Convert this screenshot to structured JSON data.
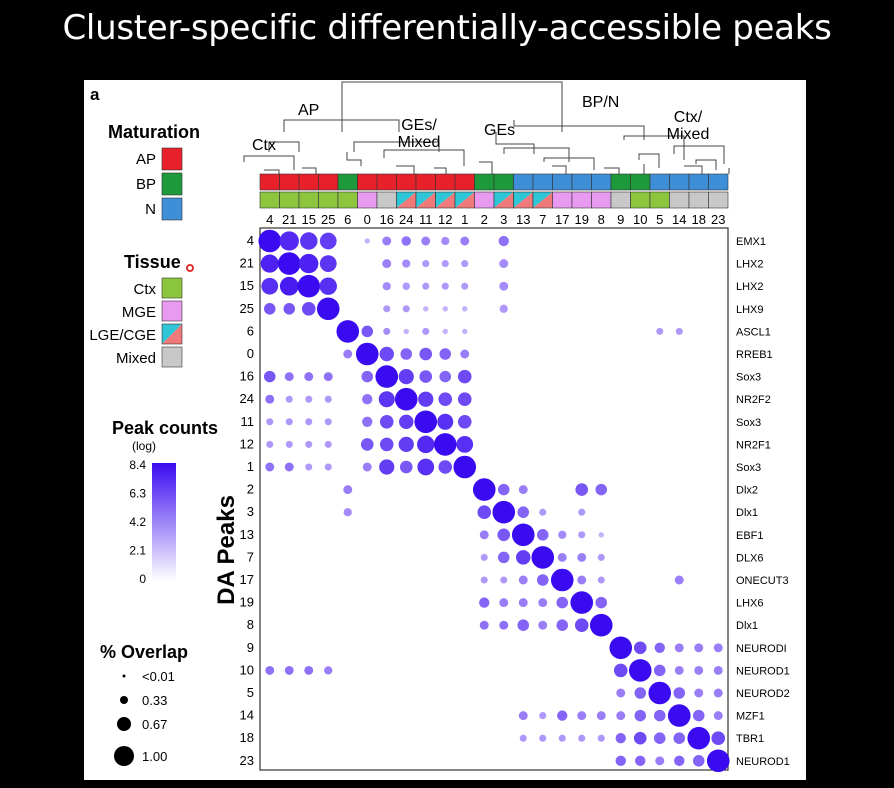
{
  "slide": {
    "title": "Cluster-specific differentially-accessible peaks"
  },
  "panel_label": "a",
  "dendrogram_labels": {
    "ap": "AP",
    "bpn": "BP/N",
    "ctx": "Ctx",
    "ges_mixed": "GEs/\nMixed",
    "ges": "GEs",
    "ctx_mixed": "Ctx/\nMixed"
  },
  "legend": {
    "maturation_title": "Maturation",
    "maturation": [
      {
        "label": "AP",
        "color": "#e8202a"
      },
      {
        "label": "BP",
        "color": "#1e9a3c"
      },
      {
        "label": "N",
        "color": "#3f8fd8"
      }
    ],
    "tissue_title": "Tissue",
    "tissue": [
      {
        "label": "Ctx",
        "color": "#8cc63f"
      },
      {
        "label": "MGE",
        "color": "#e89af0"
      },
      {
        "label": "LGE/CGE",
        "color": "split"
      },
      {
        "label": "Mixed",
        "color": "#c8c8c8"
      }
    ],
    "peak_title": "Peak counts",
    "peak_sub": "(log)",
    "peak_ticks": [
      "8.4",
      "6.3",
      "4.2",
      "2.1",
      "0"
    ],
    "overlap_title": "% Overlap",
    "overlap_ticks": [
      "<0.01",
      "0.33",
      "0.67",
      "1.00"
    ]
  },
  "colors": {
    "dot_high": "#3a0bf0",
    "dot_low": "#efe6ff",
    "lge": "#2ec6d6",
    "lge2": "#f07a7a"
  },
  "chart_data": {
    "type": "heatmap",
    "encoding": "dot matrix: dot size = % overlap, dot color = peak counts (log)",
    "ylabel": "DA Peaks",
    "columns": [
      "4",
      "21",
      "15",
      "25",
      "6",
      "0",
      "16",
      "24",
      "11",
      "12",
      "1",
      "2",
      "3",
      "13",
      "7",
      "17",
      "19",
      "8",
      "9",
      "10",
      "5",
      "14",
      "18",
      "23"
    ],
    "column_maturation": [
      "AP",
      "AP",
      "AP",
      "AP",
      "BP",
      "AP",
      "AP",
      "AP",
      "AP",
      "AP",
      "AP",
      "BP",
      "BP",
      "N",
      "N",
      "N",
      "N",
      "N",
      "BP",
      "BP",
      "N",
      "N",
      "N",
      "N"
    ],
    "column_tissue": [
      "Ctx",
      "Ctx",
      "Ctx",
      "Ctx",
      "Ctx",
      "MGE",
      "Mixed",
      "LGE/CGE",
      "LGE/CGE",
      "LGE/CGE",
      "LGE/CGE",
      "MGE",
      "LGE/CGE",
      "LGE/CGE",
      "LGE/CGE",
      "MGE",
      "MGE",
      "MGE",
      "Mixed",
      "Ctx",
      "Ctx",
      "Mixed",
      "Mixed",
      "Mixed"
    ],
    "rows": [
      "4",
      "21",
      "15",
      "25",
      "6",
      "0",
      "16",
      "24",
      "11",
      "12",
      "1",
      "2",
      "3",
      "13",
      "7",
      "17",
      "19",
      "8",
      "9",
      "10",
      "5",
      "14",
      "18",
      "23"
    ],
    "row_motifs": [
      "EMX1",
      "LHX2",
      "LHX2",
      "LHX9",
      "ASCL1",
      "RREB1",
      "Sox3",
      "NR2F2",
      "Sox3",
      "NR2F1",
      "Sox3",
      "Dlx2",
      "Dlx1",
      "EBF1",
      "DLX6",
      "ONECUT3",
      "LHX6",
      "Dlx1",
      "NEURODI",
      "NEUROD1",
      "NEUROD2",
      "MZF1",
      "TBR1",
      "NEUROD1"
    ],
    "peak_range": [
      0,
      8.4
    ],
    "overlap_range": [
      0,
      1.0
    ],
    "overlap": [
      [
        1.0,
        0.7,
        0.55,
        0.5,
        0,
        0.02,
        0.1,
        0.12,
        0.1,
        0.08,
        0.1,
        0,
        0.15,
        0,
        0,
        0,
        0,
        0,
        0,
        0,
        0,
        0,
        0,
        0
      ],
      [
        0.6,
        1.0,
        0.7,
        0.5,
        0,
        0,
        0.1,
        0.08,
        0.05,
        0.05,
        0.05,
        0,
        0.1,
        0,
        0,
        0,
        0,
        0,
        0,
        0,
        0,
        0,
        0,
        0
      ],
      [
        0.5,
        0.65,
        1.0,
        0.55,
        0,
        0,
        0.08,
        0.06,
        0.05,
        0.05,
        0.05,
        0,
        0.1,
        0,
        0,
        0,
        0,
        0,
        0,
        0,
        0,
        0,
        0,
        0
      ],
      [
        0.2,
        0.2,
        0.3,
        1.0,
        0,
        0,
        0.05,
        0.05,
        0.02,
        0.02,
        0.02,
        0,
        0.08,
        0,
        0,
        0,
        0,
        0,
        0,
        0,
        0,
        0,
        0,
        0
      ],
      [
        0,
        0,
        0,
        0,
        1.0,
        0.2,
        0.05,
        0.02,
        0.05,
        0.02,
        0.02,
        0,
        0,
        0,
        0,
        0,
        0,
        0,
        0,
        0,
        0.05,
        0.05,
        0,
        0
      ],
      [
        0,
        0,
        0,
        0,
        0.1,
        1.0,
        0.35,
        0.2,
        0.25,
        0.2,
        0.1,
        0,
        0,
        0,
        0,
        0,
        0,
        0,
        0,
        0,
        0,
        0,
        0,
        0
      ],
      [
        0.2,
        0.1,
        0.1,
        0.1,
        0,
        0.2,
        1.0,
        0.4,
        0.25,
        0.2,
        0.3,
        0,
        0,
        0,
        0,
        0,
        0,
        0,
        0,
        0,
        0,
        0,
        0,
        0
      ],
      [
        0.1,
        0.05,
        0.05,
        0.05,
        0,
        0.15,
        0.45,
        1.0,
        0.4,
        0.3,
        0.3,
        0,
        0,
        0,
        0,
        0,
        0,
        0,
        0,
        0,
        0,
        0,
        0,
        0
      ],
      [
        0.05,
        0.05,
        0.05,
        0.05,
        0,
        0.15,
        0.3,
        0.35,
        1.0,
        0.45,
        0.3,
        0,
        0,
        0,
        0,
        0,
        0,
        0,
        0,
        0,
        0,
        0,
        0,
        0
      ],
      [
        0.05,
        0.05,
        0.05,
        0.05,
        0,
        0.25,
        0.3,
        0.4,
        0.55,
        1.0,
        0.5,
        0,
        0,
        0,
        0,
        0,
        0,
        0,
        0,
        0,
        0,
        0,
        0,
        0
      ],
      [
        0.1,
        0.1,
        0.05,
        0.05,
        0,
        0.1,
        0.4,
        0.25,
        0.5,
        0.3,
        1.0,
        0,
        0,
        0,
        0,
        0,
        0,
        0,
        0,
        0,
        0,
        0,
        0,
        0
      ],
      [
        0,
        0,
        0,
        0,
        0.1,
        0,
        0,
        0,
        0,
        0,
        0,
        1.0,
        0.2,
        0.1,
        0,
        0,
        0.25,
        0.2,
        0,
        0,
        0,
        0,
        0,
        0
      ],
      [
        0,
        0,
        0,
        0,
        0.08,
        0,
        0,
        0,
        0,
        0,
        0,
        0.3,
        1.0,
        0.2,
        0.05,
        0,
        0.05,
        0,
        0,
        0,
        0,
        0,
        0,
        0
      ],
      [
        0,
        0,
        0,
        0,
        0,
        0,
        0,
        0,
        0,
        0,
        0,
        0.1,
        0.25,
        1.0,
        0.2,
        0.08,
        0.05,
        0.02,
        0,
        0,
        0,
        0,
        0,
        0
      ],
      [
        0,
        0,
        0,
        0,
        0,
        0,
        0,
        0,
        0,
        0,
        0,
        0.05,
        0.2,
        0.35,
        1.0,
        0.1,
        0.1,
        0.05,
        0,
        0,
        0,
        0,
        0,
        0
      ],
      [
        0,
        0,
        0,
        0,
        0,
        0,
        0,
        0,
        0,
        0,
        0,
        0.05,
        0.05,
        0.1,
        0.2,
        1.0,
        0.1,
        0.05,
        0,
        0,
        0,
        0.1,
        0,
        0
      ],
      [
        0,
        0,
        0,
        0,
        0,
        0,
        0,
        0,
        0,
        0,
        0,
        0.15,
        0.1,
        0.1,
        0.1,
        0.2,
        1.0,
        0.2,
        0,
        0,
        0,
        0,
        0,
        0
      ],
      [
        0,
        0,
        0,
        0,
        0,
        0,
        0,
        0,
        0,
        0,
        0,
        0.1,
        0.1,
        0.2,
        0.1,
        0.2,
        0.3,
        1.0,
        0,
        0,
        0,
        0,
        0,
        0
      ],
      [
        0,
        0,
        0,
        0,
        0,
        0,
        0,
        0,
        0,
        0,
        0,
        0,
        0,
        0,
        0,
        0,
        0,
        0,
        1.0,
        0.25,
        0.15,
        0.1,
        0.1,
        0.1
      ],
      [
        0.1,
        0.1,
        0.1,
        0.08,
        0,
        0,
        0,
        0,
        0,
        0,
        0,
        0,
        0,
        0,
        0,
        0,
        0,
        0,
        0.3,
        1.0,
        0.2,
        0.1,
        0.1,
        0.1
      ],
      [
        0,
        0,
        0,
        0,
        0,
        0,
        0,
        0,
        0,
        0,
        0,
        0,
        0,
        0,
        0,
        0,
        0,
        0,
        0.1,
        0.2,
        1.0,
        0.2,
        0.1,
        0.1
      ],
      [
        0,
        0,
        0,
        0,
        0,
        0,
        0,
        0,
        0,
        0,
        0,
        0,
        0,
        0.1,
        0.05,
        0.15,
        0.1,
        0.1,
        0.1,
        0.2,
        0.2,
        1.0,
        0.2,
        0.1
      ],
      [
        0,
        0,
        0,
        0,
        0,
        0,
        0,
        0,
        0,
        0,
        0,
        0,
        0,
        0.05,
        0.05,
        0.05,
        0.05,
        0.05,
        0.15,
        0.25,
        0.2,
        0.2,
        1.0,
        0.3
      ],
      [
        0,
        0,
        0,
        0,
        0,
        0,
        0,
        0,
        0,
        0,
        0,
        0,
        0,
        0,
        0,
        0,
        0,
        0,
        0.15,
        0.15,
        0.1,
        0.15,
        0.2,
        1.0
      ]
    ],
    "peak_counts_log": [
      [
        8.4,
        7.2,
        6.8,
        6.5,
        0,
        2,
        4,
        4.5,
        4,
        3.5,
        4,
        0,
        4.5,
        0,
        0,
        0,
        0,
        0,
        0,
        0,
        0,
        0,
        0,
        0
      ],
      [
        7.5,
        8.4,
        7.5,
        6.8,
        0,
        0,
        4,
        3.5,
        3,
        3,
        3,
        0,
        3.5,
        0,
        0,
        0,
        0,
        0,
        0,
        0,
        0,
        0,
        0,
        0
      ],
      [
        7,
        7.8,
        8.4,
        7,
        0,
        0,
        3.5,
        3,
        3,
        3,
        3,
        0,
        3.5,
        0,
        0,
        0,
        0,
        0,
        0,
        0,
        0,
        0,
        0,
        0
      ],
      [
        5.5,
        5.5,
        6,
        8.4,
        0,
        0,
        3,
        3,
        2,
        2,
        2,
        0,
        3,
        0,
        0,
        0,
        0,
        0,
        0,
        0,
        0,
        0,
        0,
        0
      ],
      [
        0,
        0,
        0,
        0,
        8.4,
        5.5,
        3.5,
        2,
        3,
        2,
        2,
        0,
        0,
        0,
        0,
        0,
        0,
        0,
        0,
        0,
        3,
        3,
        0,
        0
      ],
      [
        0,
        0,
        0,
        0,
        4,
        8.4,
        6,
        5,
        5.5,
        5,
        4,
        0,
        0,
        0,
        0,
        0,
        0,
        0,
        0,
        0,
        0,
        0,
        0,
        0
      ],
      [
        5.5,
        4.5,
        4.5,
        4.5,
        0,
        5,
        8.4,
        6.5,
        5.5,
        5,
        6,
        0,
        0,
        0,
        0,
        0,
        0,
        0,
        0,
        0,
        0,
        0,
        0,
        0
      ],
      [
        4.5,
        3,
        3,
        3,
        0,
        4.5,
        6.8,
        8.4,
        6.5,
        6,
        6,
        0,
        0,
        0,
        0,
        0,
        0,
        0,
        0,
        0,
        0,
        0,
        0,
        0
      ],
      [
        3,
        3,
        3,
        3,
        0,
        4.5,
        6,
        6.5,
        8.4,
        7,
        6,
        0,
        0,
        0,
        0,
        0,
        0,
        0,
        0,
        0,
        0,
        0,
        0,
        0
      ],
      [
        3,
        3,
        3,
        3,
        0,
        5.5,
        6,
        6.5,
        7.2,
        8.4,
        7,
        0,
        0,
        0,
        0,
        0,
        0,
        0,
        0,
        0,
        0,
        0,
        0,
        0
      ],
      [
        4.5,
        4.5,
        3,
        3,
        0,
        4,
        6.5,
        5.5,
        7,
        6,
        8.4,
        0,
        0,
        0,
        0,
        0,
        0,
        0,
        0,
        0,
        0,
        0,
        0,
        0
      ],
      [
        0,
        0,
        0,
        0,
        4,
        0,
        0,
        0,
        0,
        0,
        0,
        8.4,
        5,
        4,
        0,
        0,
        5.5,
        5,
        0,
        0,
        0,
        0,
        0,
        0
      ],
      [
        0,
        0,
        0,
        0,
        3.5,
        0,
        0,
        0,
        0,
        0,
        0,
        6,
        8.4,
        5,
        3,
        0,
        3,
        0,
        0,
        0,
        0,
        0,
        0,
        0
      ],
      [
        0,
        0,
        0,
        0,
        0,
        0,
        0,
        0,
        0,
        0,
        0,
        4,
        5.5,
        8.4,
        5,
        3.5,
        3,
        2,
        0,
        0,
        0,
        0,
        0,
        0
      ],
      [
        0,
        0,
        0,
        0,
        0,
        0,
        0,
        0,
        0,
        0,
        0,
        3,
        5,
        6.5,
        8.4,
        4,
        4,
        3,
        0,
        0,
        0,
        0,
        0,
        0
      ],
      [
        0,
        0,
        0,
        0,
        0,
        0,
        0,
        0,
        0,
        0,
        0,
        3,
        3,
        4,
        5,
        8.4,
        4,
        3,
        0,
        0,
        0,
        4,
        0,
        0
      ],
      [
        0,
        0,
        0,
        0,
        0,
        0,
        0,
        0,
        0,
        0,
        0,
        5,
        4,
        4,
        4,
        5,
        8.4,
        5,
        0,
        0,
        0,
        0,
        0,
        0
      ],
      [
        0,
        0,
        0,
        0,
        0,
        0,
        0,
        0,
        0,
        0,
        0,
        4.5,
        4.5,
        5,
        4,
        5,
        6,
        8.4,
        0,
        0,
        0,
        0,
        0,
        0
      ],
      [
        0,
        0,
        0,
        0,
        0,
        0,
        0,
        0,
        0,
        0,
        0,
        0,
        0,
        0,
        0,
        0,
        0,
        0,
        8.4,
        6,
        5,
        4,
        4,
        4
      ],
      [
        4.5,
        4.5,
        4.5,
        4,
        0,
        0,
        0,
        0,
        0,
        0,
        0,
        0,
        0,
        0,
        0,
        0,
        0,
        0,
        6,
        8.4,
        5,
        4,
        4,
        4
      ],
      [
        0,
        0,
        0,
        0,
        0,
        0,
        0,
        0,
        0,
        0,
        0,
        0,
        0,
        0,
        0,
        0,
        0,
        0,
        4,
        5,
        8.4,
        5,
        4,
        4
      ],
      [
        0,
        0,
        0,
        0,
        0,
        0,
        0,
        0,
        0,
        0,
        0,
        0,
        0,
        4,
        3,
        5,
        4,
        4,
        4,
        5,
        5,
        8.4,
        5,
        4
      ],
      [
        0,
        0,
        0,
        0,
        0,
        0,
        0,
        0,
        0,
        0,
        0,
        0,
        0,
        3,
        3,
        3,
        3,
        3,
        5,
        6,
        5,
        5,
        8.4,
        6
      ],
      [
        0,
        0,
        0,
        0,
        0,
        0,
        0,
        0,
        0,
        0,
        0,
        0,
        0,
        0,
        0,
        0,
        0,
        0,
        5,
        5,
        4,
        5,
        5,
        8.4
      ]
    ]
  }
}
